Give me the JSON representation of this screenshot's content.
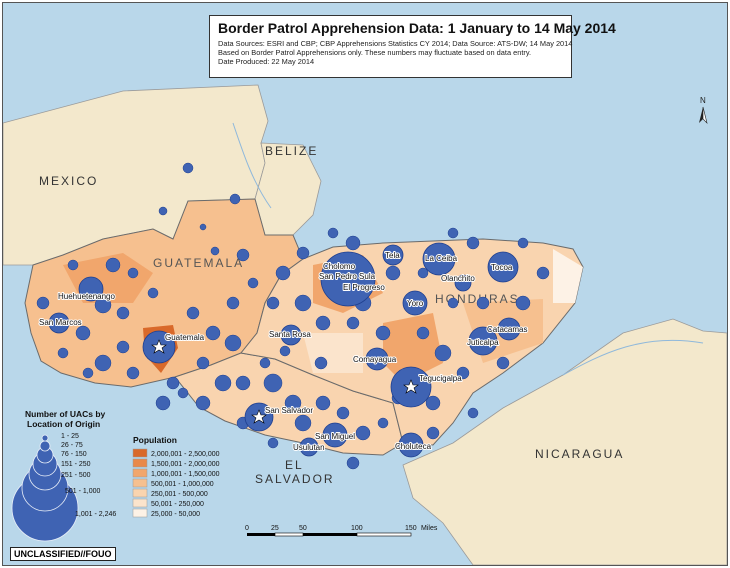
{
  "title": "Border Patrol Apprehension Data: 1 January to 14 May 2014",
  "source_lines": [
    "Data Sources: ESRI and CBP; CBP Apprehensions Statistics CY 2014; Data Source: ATS-DW; 14 May 2014",
    "Based on Border Patrol Apprehensions only.  These numbers may fluctuate based on data entry.",
    "Date Produced: 22 May 2014"
  ],
  "countries": {
    "mexico": "MEXICO",
    "belize": "BELIZE",
    "guatemala": "GUATEMALA",
    "honduras": "HONDURAS",
    "el": "EL",
    "salvador": "SALVADOR",
    "nicaragua": "NICARAGUA"
  },
  "cities": [
    {
      "name": "Huehuetenango",
      "star": false
    },
    {
      "name": "San Marcos",
      "star": false
    },
    {
      "name": "Guatemala",
      "star": true
    },
    {
      "name": "Santa Rosa",
      "star": false
    },
    {
      "name": "San Salvador",
      "star": true
    },
    {
      "name": "San Miguel",
      "star": false
    },
    {
      "name": "Usulutan",
      "star": false
    },
    {
      "name": "Cholomo",
      "star": false
    },
    {
      "name": "San Pedro Sula",
      "star": false
    },
    {
      "name": "El Progreso",
      "star": false
    },
    {
      "name": "Tela",
      "star": false
    },
    {
      "name": "La Ceiba",
      "star": false
    },
    {
      "name": "Olanchito",
      "star": false
    },
    {
      "name": "Tocoa",
      "star": false
    },
    {
      "name": "Yoro",
      "star": false
    },
    {
      "name": "Catacamas",
      "star": false
    },
    {
      "name": "Juticalpa",
      "star": false
    },
    {
      "name": "Comayagua",
      "star": false
    },
    {
      "name": "Tegucigalpa",
      "star": true
    },
    {
      "name": "Choluteca",
      "star": false
    }
  ],
  "uac_legend": {
    "title_line1": "Number of UACs by",
    "title_line2": "Location of Origin",
    "classes": [
      "1 - 25",
      "26 - 75",
      "76 - 150",
      "151 - 250",
      "251 - 500",
      "501 - 1,000",
      "1,001 - 2,246"
    ]
  },
  "population_legend": {
    "title": "Population",
    "classes": [
      {
        "label": "2,000,001 - 2,500,000",
        "color": "#d9692a"
      },
      {
        "label": "1,500,001 - 2,000,000",
        "color": "#e9894a"
      },
      {
        "label": "1,000,001 - 1,500,000",
        "color": "#f1a66c"
      },
      {
        "label": "500,001 - 1,000,000",
        "color": "#f6c08f"
      },
      {
        "label": "250,001 - 500,000",
        "color": "#f9d4af"
      },
      {
        "label": "50,001 - 250,000",
        "color": "#fbe4cc"
      },
      {
        "label": "25,000 - 50,000",
        "color": "#fdf2e6"
      }
    ]
  },
  "scale": {
    "ticks": [
      "0",
      "25",
      "50",
      "100",
      "150"
    ],
    "unit": "Miles"
  },
  "north_label": "N",
  "classification": "UNCLASSIFIED//FOUO",
  "colors": {
    "water": "#b9d7ea",
    "other_land": "#f3e8cc",
    "bubble": "#3f63b3",
    "bubble_stroke": "#1f3f8f"
  }
}
